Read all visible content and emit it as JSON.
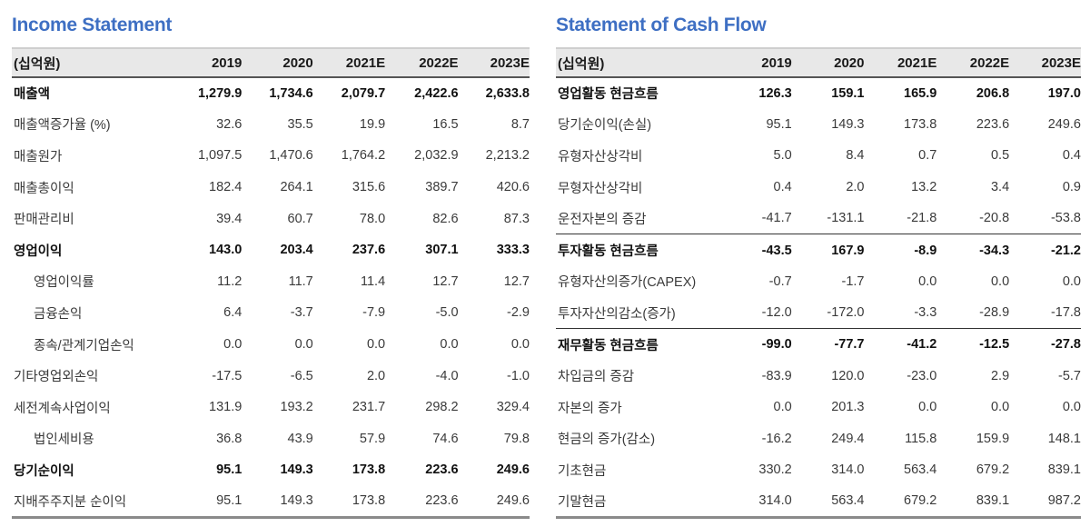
{
  "income_statement": {
    "title": "Income Statement",
    "header": {
      "unit": "(십억원)",
      "years": [
        "2019",
        "2020",
        "2021E",
        "2022E",
        "2023E"
      ]
    },
    "rows": [
      {
        "label": "매출액",
        "values": [
          "1,279.9",
          "1,734.6",
          "2,079.7",
          "2,422.6",
          "2,633.8"
        ],
        "bold": true
      },
      {
        "label": "매출액증가율 (%)",
        "values": [
          "32.6",
          "35.5",
          "19.9",
          "16.5",
          "8.7"
        ]
      },
      {
        "label": "매출원가",
        "values": [
          "1,097.5",
          "1,470.6",
          "1,764.2",
          "2,032.9",
          "2,213.2"
        ]
      },
      {
        "label": "매출총이익",
        "values": [
          "182.4",
          "264.1",
          "315.6",
          "389.7",
          "420.6"
        ]
      },
      {
        "label": "판매관리비",
        "values": [
          "39.4",
          "60.7",
          "78.0",
          "82.6",
          "87.3"
        ]
      },
      {
        "label": "영업이익",
        "values": [
          "143.0",
          "203.4",
          "237.6",
          "307.1",
          "333.3"
        ],
        "bold": true
      },
      {
        "label": "영업이익률",
        "values": [
          "11.2",
          "11.7",
          "11.4",
          "12.7",
          "12.7"
        ],
        "indent": true
      },
      {
        "label": "금융손익",
        "values": [
          "6.4",
          "-3.7",
          "-7.9",
          "-5.0",
          "-2.9"
        ],
        "indent": true
      },
      {
        "label": "종속/관계기업손익",
        "values": [
          "0.0",
          "0.0",
          "0.0",
          "0.0",
          "0.0"
        ],
        "indent": true
      },
      {
        "label": "기타영업외손익",
        "values": [
          "-17.5",
          "-6.5",
          "2.0",
          "-4.0",
          "-1.0"
        ]
      },
      {
        "label": "세전계속사업이익",
        "values": [
          "131.9",
          "193.2",
          "231.7",
          "298.2",
          "329.4"
        ]
      },
      {
        "label": "법인세비용",
        "values": [
          "36.8",
          "43.9",
          "57.9",
          "74.6",
          "79.8"
        ],
        "indent": true
      },
      {
        "label": "당기순이익",
        "values": [
          "95.1",
          "149.3",
          "173.8",
          "223.6",
          "249.6"
        ],
        "bold": true
      },
      {
        "label": "지배주주지분 순이익",
        "values": [
          "95.1",
          "149.3",
          "173.8",
          "223.6",
          "249.6"
        ]
      }
    ]
  },
  "cash_flow": {
    "title": "Statement of Cash Flow",
    "header": {
      "unit": "(십억원)",
      "years": [
        "2019",
        "2020",
        "2021E",
        "2022E",
        "2023E"
      ]
    },
    "rows": [
      {
        "label": "영업활동 현금흐름",
        "values": [
          "126.3",
          "159.1",
          "165.9",
          "206.8",
          "197.0"
        ],
        "bold": true
      },
      {
        "label": "당기순이익(손실)",
        "values": [
          "95.1",
          "149.3",
          "173.8",
          "223.6",
          "249.6"
        ]
      },
      {
        "label": "유형자산상각비",
        "values": [
          "5.0",
          "8.4",
          "0.7",
          "0.5",
          "0.4"
        ]
      },
      {
        "label": "무형자산상각비",
        "values": [
          "0.4",
          "2.0",
          "13.2",
          "3.4",
          "0.9"
        ]
      },
      {
        "label": "운전자본의 증감",
        "values": [
          "-41.7",
          "-131.1",
          "-21.8",
          "-20.8",
          "-53.8"
        ]
      },
      {
        "label": "투자활동 현금흐름",
        "values": [
          "-43.5",
          "167.9",
          "-8.9",
          "-34.3",
          "-21.2"
        ],
        "bold": true,
        "topline": true
      },
      {
        "label": "유형자산의증가(CAPEX)",
        "values": [
          "-0.7",
          "-1.7",
          "0.0",
          "0.0",
          "0.0"
        ]
      },
      {
        "label": "투자자산의감소(증가)",
        "values": [
          "-12.0",
          "-172.0",
          "-3.3",
          "-28.9",
          "-17.8"
        ]
      },
      {
        "label": "재무활동 현금흐름",
        "values": [
          "-99.0",
          "-77.7",
          "-41.2",
          "-12.5",
          "-27.8"
        ],
        "bold": true,
        "topline": true
      },
      {
        "label": "차입금의 증감",
        "values": [
          "-83.9",
          "120.0",
          "-23.0",
          "2.9",
          "-5.7"
        ]
      },
      {
        "label": "자본의 증가",
        "values": [
          "0.0",
          "201.3",
          "0.0",
          "0.0",
          "0.0"
        ]
      },
      {
        "label": "현금의 증가(감소)",
        "values": [
          "-16.2",
          "249.4",
          "115.8",
          "159.9",
          "148.1"
        ]
      },
      {
        "label": "기초현금",
        "values": [
          "330.2",
          "314.0",
          "563.4",
          "679.2",
          "839.1"
        ]
      },
      {
        "label": "기말현금",
        "values": [
          "314.0",
          "563.4",
          "679.2",
          "839.1",
          "987.2"
        ]
      }
    ]
  }
}
